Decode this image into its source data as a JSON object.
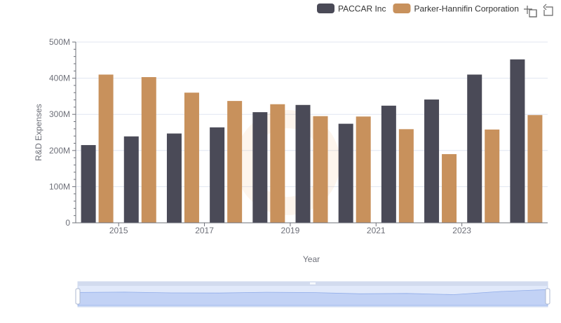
{
  "chart_data": {
    "type": "bar",
    "xlabel": "Year",
    "ylabel": "R&D Expenses",
    "ylim": [
      0,
      500000000
    ],
    "y_ticks": [
      {
        "value": 0,
        "label": "0"
      },
      {
        "value": 100000000,
        "label": "100M"
      },
      {
        "value": 200000000,
        "label": "200M"
      },
      {
        "value": 300000000,
        "label": "300M"
      },
      {
        "value": 400000000,
        "label": "400M"
      },
      {
        "value": 500000000,
        "label": "500M"
      }
    ],
    "categories": [
      "2014",
      "2015",
      "2016",
      "2017",
      "2018",
      "2019",
      "2020",
      "2021",
      "2022",
      "2023",
      "2024"
    ],
    "x_tick_labels": [
      "2015",
      "2017",
      "2019",
      "2021",
      "2023"
    ],
    "series": [
      {
        "name": "PACCAR Inc",
        "color": "#4a4a57",
        "values": [
          215000000,
          239000000,
          247000000,
          264000000,
          306000000,
          326000000,
          274000000,
          324000000,
          341000000,
          410000000,
          452000000
        ]
      },
      {
        "name": "Parker-Hannifin Corporation",
        "color": "#c8915c",
        "values": [
          410000000,
          403000000,
          360000000,
          337000000,
          328000000,
          295000000,
          294000000,
          259000000,
          190000000,
          258000000,
          298000000
        ]
      }
    ],
    "legend_position": "top-right",
    "grid": true
  },
  "toolbox": {
    "zoom_icon": "zoom-icon",
    "restore_icon": "restore-icon"
  },
  "colors": {
    "grid": "#e0e6f1",
    "axis": "#6e7079",
    "datazoom_fill": "#d2dbee",
    "datazoom_area": "#c5d4f7"
  }
}
